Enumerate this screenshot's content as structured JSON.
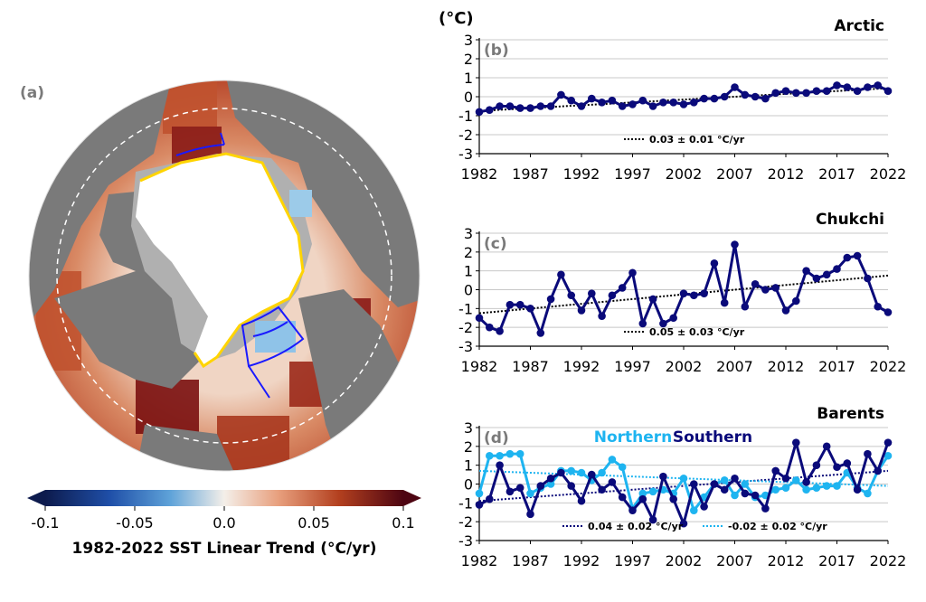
{
  "map": {
    "panel_label": "(a)",
    "colorbar": {
      "ticks": [
        "-0.1",
        "-0.05",
        "0.0",
        "0.05",
        "0.1"
      ],
      "label": "1982-2022 SST Linear Trend (°C/yr)",
      "colors": [
        "#0d1b4d",
        "#1f4fa8",
        "#5fa3d9",
        "#f4efe9",
        "#e8a07e",
        "#b3401f",
        "#4d0512"
      ]
    },
    "colors": {
      "land": "#7a7a7a",
      "ice": "#ffffff",
      "shelf": "#b0b0b0",
      "ice_edge": "#ffd400",
      "region_box": "#1a1aff"
    }
  },
  "units_label": "(°C)",
  "x_ticks": [
    "1982",
    "1987",
    "1992",
    "1997",
    "2002",
    "2007",
    "2012",
    "2017",
    "2022"
  ],
  "chart_data": [
    {
      "type": "line",
      "panel_label": "(b)",
      "title": "Arctic",
      "ylim": [
        -3,
        3
      ],
      "y_ticks": [
        "3",
        "2",
        "1",
        "0",
        "-1",
        "-2",
        "-3"
      ],
      "x": [
        1982,
        1983,
        1984,
        1985,
        1986,
        1987,
        1988,
        1989,
        1990,
        1991,
        1992,
        1993,
        1994,
        1995,
        1996,
        1997,
        1998,
        1999,
        2000,
        2001,
        2002,
        2003,
        2004,
        2005,
        2006,
        2007,
        2008,
        2009,
        2010,
        2011,
        2012,
        2013,
        2014,
        2015,
        2016,
        2017,
        2018,
        2019,
        2020,
        2021,
        2022
      ],
      "series": [
        {
          "color": "#0a0a7a",
          "values": [
            -0.8,
            -0.7,
            -0.5,
            -0.5,
            -0.6,
            -0.6,
            -0.5,
            -0.5,
            0.1,
            -0.2,
            -0.5,
            -0.1,
            -0.3,
            -0.2,
            -0.5,
            -0.4,
            -0.2,
            -0.5,
            -0.3,
            -0.3,
            -0.4,
            -0.3,
            -0.1,
            -0.1,
            0.0,
            0.5,
            0.1,
            0.0,
            -0.1,
            0.2,
            0.3,
            0.2,
            0.2,
            0.3,
            0.3,
            0.6,
            0.5,
            0.3,
            0.5,
            0.6,
            0.3
          ]
        }
      ],
      "trends": [
        {
          "color": "#000000",
          "label": "0.03 ± 0.01 °C/yr",
          "start": -0.75,
          "end": 0.45
        }
      ]
    },
    {
      "type": "line",
      "panel_label": "(c)",
      "title": "Chukchi",
      "ylim": [
        -3,
        3
      ],
      "y_ticks": [
        "3",
        "2",
        "1",
        "0",
        "-1",
        "-2",
        "-3"
      ],
      "x": [
        1982,
        1983,
        1984,
        1985,
        1986,
        1987,
        1988,
        1989,
        1990,
        1991,
        1992,
        1993,
        1994,
        1995,
        1996,
        1997,
        1998,
        1999,
        2000,
        2001,
        2002,
        2003,
        2004,
        2005,
        2006,
        2007,
        2008,
        2009,
        2010,
        2011,
        2012,
        2013,
        2014,
        2015,
        2016,
        2017,
        2018,
        2019,
        2020,
        2021,
        2022
      ],
      "series": [
        {
          "color": "#0a0a7a",
          "values": [
            -1.5,
            -2.0,
            -2.2,
            -0.8,
            -0.8,
            -1.0,
            -2.3,
            -0.5,
            0.8,
            -0.3,
            -1.1,
            -0.2,
            -1.4,
            -0.3,
            0.1,
            0.9,
            -1.8,
            -0.5,
            -1.8,
            -1.5,
            -0.2,
            -0.3,
            -0.2,
            1.4,
            -0.7,
            2.4,
            -0.9,
            0.3,
            0.0,
            0.1,
            -1.1,
            -0.6,
            1.0,
            0.6,
            0.8,
            1.1,
            1.7,
            1.8,
            0.6,
            -0.9,
            -1.2
          ]
        }
      ],
      "trends": [
        {
          "color": "#000000",
          "label": "0.05 ± 0.03 °C/yr",
          "start": -1.25,
          "end": 0.75
        }
      ]
    },
    {
      "type": "line",
      "panel_label": "(d)",
      "title": "Barents",
      "ylim": [
        -3,
        3
      ],
      "y_ticks": [
        "3",
        "2",
        "1",
        "0",
        "-1",
        "-2",
        "-3"
      ],
      "x": [
        1982,
        1983,
        1984,
        1985,
        1986,
        1987,
        1988,
        1989,
        1990,
        1991,
        1992,
        1993,
        1994,
        1995,
        1996,
        1997,
        1998,
        1999,
        2000,
        2001,
        2002,
        2003,
        2004,
        2005,
        2006,
        2007,
        2008,
        2009,
        2010,
        2011,
        2012,
        2013,
        2014,
        2015,
        2016,
        2017,
        2018,
        2019,
        2020,
        2021,
        2022
      ],
      "series": [
        {
          "name": "Northern",
          "color": "#1eb4f0",
          "values": [
            -0.5,
            1.5,
            1.5,
            1.6,
            1.6,
            -0.5,
            -0.2,
            0.0,
            0.7,
            0.7,
            0.6,
            0.2,
            0.6,
            1.3,
            0.9,
            -1.3,
            -0.5,
            -0.4,
            -0.3,
            -0.5,
            0.3,
            -1.4,
            -0.7,
            0.0,
            0.2,
            -0.6,
            0.0,
            -0.7,
            -0.6,
            -0.3,
            -0.2,
            0.2,
            -0.3,
            -0.2,
            -0.1,
            -0.1,
            0.6,
            -0.2,
            -0.5,
            0.7,
            1.5
          ]
        },
        {
          "name": "Southern",
          "color": "#0a0a7a",
          "values": [
            -1.1,
            -0.8,
            1.0,
            -0.4,
            -0.2,
            -1.6,
            -0.1,
            0.3,
            0.6,
            -0.1,
            -0.9,
            0.5,
            -0.3,
            0.1,
            -0.7,
            -1.4,
            -0.8,
            -1.9,
            0.4,
            -0.8,
            -2.1,
            0.0,
            -1.2,
            0.0,
            -0.3,
            0.3,
            -0.5,
            -0.6,
            -1.3,
            0.7,
            0.3,
            2.2,
            0.1,
            1.0,
            2.0,
            0.9,
            1.1,
            -0.3,
            1.6,
            0.7,
            2.2
          ]
        }
      ],
      "trends": [
        {
          "color": "#0a0a7a",
          "label": "0.04 ± 0.02 °C/yr",
          "start": -0.9,
          "end": 0.7
        },
        {
          "color": "#1eb4f0",
          "label": "-0.02 ± 0.02 °C/yr",
          "start": 0.7,
          "end": -0.1
        }
      ]
    }
  ]
}
